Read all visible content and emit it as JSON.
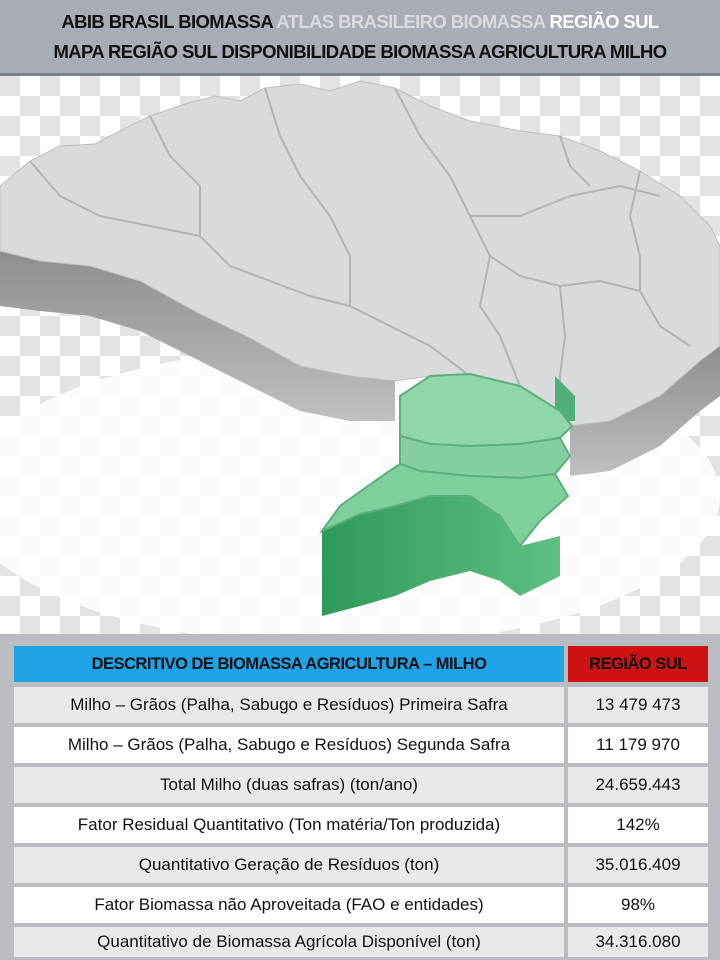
{
  "header": {
    "line1": {
      "part1": "ABIB BRASIL BIOMASSA",
      "part2": "ATLAS BRASILEIRO BIOMASSA",
      "part3": "REGIÃO SUL"
    },
    "line2": "MAPA REGIÃO SUL  DISPONIBILIDADE  BIOMASSA AGRICULTURA MILHO"
  },
  "map": {
    "highlight_color": "#7fcf9c",
    "base_color": "#d9dadc"
  },
  "table": {
    "header": {
      "description": "DESCRITIVO DE BIOMASSA AGRICULTURA – MILHO",
      "region": "REGIÃO SUL"
    },
    "rows": [
      {
        "label": "Milho – Grãos (Palha, Sabugo  e Resíduos) Primeira Safra",
        "value": "13 479 473"
      },
      {
        "label": "Milho – Grãos (Palha, Sabugo  e Resíduos) Segunda Safra",
        "value": "11 179 970"
      },
      {
        "label": "Total Milho (duas safras)  (ton/ano)",
        "value": "24.659.443"
      },
      {
        "label": "Fator  Residual  Quantitativo  (Ton matéria/Ton produzida)",
        "value": "142%"
      },
      {
        "label": "Quantitativo Geração de Resíduos    (ton)",
        "value": "35.016.409"
      },
      {
        "label": "Fator Biomassa não Aproveitada (FAO e entidades)",
        "value": "98%"
      },
      {
        "label": "Quantitativo de Biomassa Agrícola Disponível (ton)",
        "value": "34.316.080"
      }
    ]
  }
}
